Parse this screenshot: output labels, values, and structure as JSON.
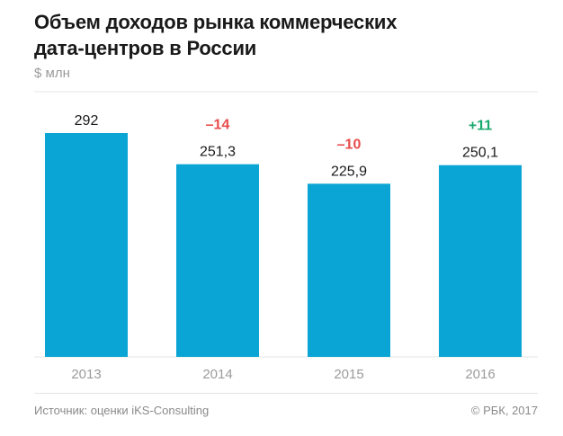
{
  "title_lines": [
    "Объем доходов рынка коммерческих",
    "дата-центров в России"
  ],
  "unit_label": "$ млн",
  "source": "Источник: оценки iKS-Consulting",
  "copyright": "© РБК, 2017",
  "colors": {
    "bar": "#0aa5d4",
    "negative": "#e84b4b",
    "positive": "#1aaa6e",
    "value_text": "#1a1a1a",
    "axis_text": "#9b9b9b",
    "grid": "#e4e4e4"
  },
  "chart_data": {
    "type": "bar",
    "title": "Объем доходов рынка коммерческих дата-центров в России",
    "xlabel": "",
    "ylabel": "$ млн",
    "categories": [
      "2013",
      "2014",
      "2015",
      "2016"
    ],
    "values": [
      292,
      251.3,
      225.9,
      250.1
    ],
    "value_labels": [
      "292",
      "251,3",
      "225,9",
      "250,1"
    ],
    "change_labels": [
      "",
      "–14",
      "–10",
      "+11"
    ],
    "change_sign": [
      "",
      "negative",
      "negative",
      "positive"
    ],
    "ylim": [
      0,
      292
    ],
    "grid": false,
    "legend": "none"
  }
}
